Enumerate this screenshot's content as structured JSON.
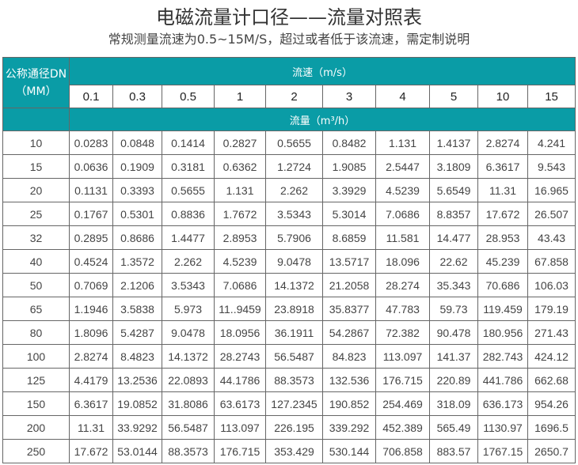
{
  "title": "电磁流量计口径——流量对照表",
  "subtitle": "常规测量流速为0.5~15M/S，超过或者低于该流速，需定制说明",
  "colors": {
    "header_bg": "#0a9ca6",
    "border": "#666666"
  },
  "table": {
    "dn_header_line1": "公称通径DN",
    "dn_header_line2": "（MM）",
    "velocity_header": "流速（m/s）",
    "flow_header": "流量（m³/h）",
    "velocities": [
      "0.1",
      "0.3",
      "0.5",
      "1",
      "2",
      "3",
      "4",
      "5",
      "10",
      "15"
    ],
    "rows": [
      {
        "dn": "10",
        "values": [
          "0.0283",
          "0.0848",
          "0.1414",
          "0.2827",
          "0.5655",
          "0.8482",
          "1.131",
          "1.4137",
          "2.8274",
          "4.241"
        ]
      },
      {
        "dn": "15",
        "values": [
          "0.0636",
          "0.1909",
          "0.3181",
          "0.6362",
          "1.2724",
          "1.9085",
          "2.5447",
          "3.1809",
          "6.3617",
          "9.543"
        ]
      },
      {
        "dn": "20",
        "values": [
          "0.1131",
          "0.3393",
          "0.5655",
          "1.131",
          "2.262",
          "3.3929",
          "4.5239",
          "5.6549",
          "11.31",
          "16.965"
        ]
      },
      {
        "dn": "25",
        "values": [
          "0.1767",
          "0.5301",
          "0.8836",
          "1.7672",
          "3.5343",
          "5.3014",
          "7.0686",
          "8.8357",
          "17.672",
          "26.507"
        ]
      },
      {
        "dn": "32",
        "values": [
          "0.2895",
          "0.8686",
          "1.4477",
          "2.8953",
          "5.7906",
          "8.6859",
          "11.581",
          "14.477",
          "28.953",
          "43.43"
        ]
      },
      {
        "dn": "40",
        "values": [
          "0.4524",
          "1.3572",
          "2.262",
          "4.5239",
          "9.0478",
          "13.5717",
          "18.096",
          "22.62",
          "45.239",
          "67.858"
        ]
      },
      {
        "dn": "50",
        "values": [
          "0.7069",
          "2.1206",
          "3.5343",
          "7.0686",
          "14.1372",
          "21.2058",
          "28.274",
          "35.343",
          "70.686",
          "106.03"
        ]
      },
      {
        "dn": "65",
        "values": [
          "1.1946",
          "3.5838",
          "5.973",
          "11..9459",
          "23.8918",
          "35.8377",
          "47.783",
          "59.73",
          "119.459",
          "179.19"
        ]
      },
      {
        "dn": "80",
        "values": [
          "1.8096",
          "5.4287",
          "9.0478",
          "18.0956",
          "36.1911",
          "54.2867",
          "72.382",
          "90.478",
          "180.956",
          "271.43"
        ]
      },
      {
        "dn": "100",
        "values": [
          "2.8274",
          "8.4823",
          "14.1372",
          "28.2743",
          "56.5487",
          "84.823",
          "113.097",
          "141.37",
          "282.743",
          "424.12"
        ]
      },
      {
        "dn": "125",
        "values": [
          "4.4179",
          "13.2536",
          "22.0893",
          "44.1786",
          "88.3573",
          "132.536",
          "176.715",
          "220.89",
          "441.786",
          "662.68"
        ]
      },
      {
        "dn": "150",
        "values": [
          "6.3617",
          "19.0852",
          "31.8086",
          "63.6173",
          "127.2345",
          "190.852",
          "254.469",
          "318.09",
          "636.173",
          "954.26"
        ]
      },
      {
        "dn": "200",
        "values": [
          "11.31",
          "33.9292",
          "56.5487",
          "113.097",
          "226.195",
          "339.292",
          "452.389",
          "565.49",
          "1130.97",
          "1696.5"
        ]
      },
      {
        "dn": "250",
        "values": [
          "17.672",
          "53.0144",
          "88.3573",
          "176.715",
          "353.429",
          "530.144",
          "706.858",
          "883.57",
          "1767.15",
          "2650.7"
        ]
      }
    ]
  }
}
